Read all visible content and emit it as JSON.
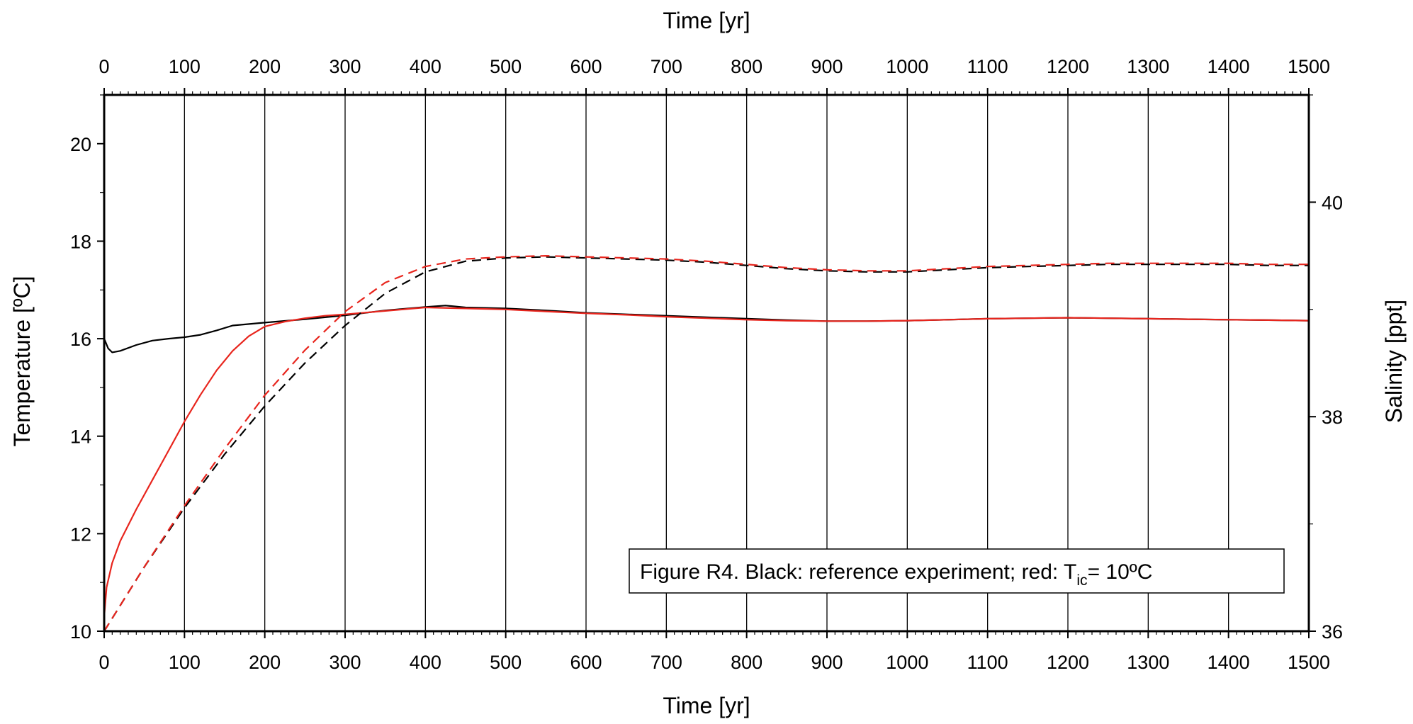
{
  "chart_data": {
    "type": "line",
    "xlabel": "Time [yr]",
    "xlabel_top": "Time [yr]",
    "ylabel": "Temperature [ºC]",
    "y2label": "Salinity [ppt]",
    "xlim": [
      0,
      1500
    ],
    "ylim": [
      10,
      21
    ],
    "y2lim": [
      36,
      41
    ],
    "x_ticks": [
      "0",
      "100",
      "200",
      "300",
      "400",
      "500",
      "600",
      "700",
      "800",
      "900",
      "1000",
      "1100",
      "1200",
      "1300",
      "1400",
      "1500"
    ],
    "y_ticks": [
      "10",
      "12",
      "14",
      "16",
      "18",
      "20"
    ],
    "y2_ticks": [
      "36",
      "38",
      "40"
    ],
    "grid": "vertical lines at every 100 yr",
    "caption": {
      "prefix": "Figure R4. Black: reference experiment; red: T",
      "subscript": "ic",
      "suffix": "= 10ºC"
    },
    "series": [
      {
        "axis": "left",
        "style": "solid",
        "color": "#000000",
        "x": [
          0,
          5,
          10,
          20,
          40,
          60,
          80,
          100,
          120,
          140,
          160,
          200,
          250,
          300,
          350,
          400,
          425,
          450,
          500,
          550,
          600,
          650,
          700,
          750,
          800,
          850,
          900,
          950,
          1000,
          1050,
          1100,
          1150,
          1200,
          1250,
          1300,
          1350,
          1400,
          1450,
          1500
        ],
        "y": [
          16.0,
          15.8,
          15.72,
          15.75,
          15.87,
          15.96,
          16.0,
          16.03,
          16.08,
          16.17,
          16.27,
          16.33,
          16.4,
          16.48,
          16.58,
          16.65,
          16.68,
          16.64,
          16.62,
          16.58,
          16.53,
          16.5,
          16.47,
          16.44,
          16.41,
          16.38,
          16.36,
          16.36,
          16.37,
          16.39,
          16.41,
          16.42,
          16.43,
          16.42,
          16.41,
          16.4,
          16.39,
          16.38,
          16.37
        ]
      },
      {
        "axis": "left",
        "style": "solid",
        "color": "#e8251d",
        "x": [
          0,
          3,
          10,
          20,
          40,
          60,
          80,
          100,
          120,
          140,
          160,
          180,
          200,
          225,
          250,
          275,
          300,
          350,
          400,
          450,
          500,
          550,
          600,
          650,
          700,
          750,
          800,
          850,
          900,
          950,
          1000,
          1050,
          1100,
          1150,
          1200,
          1250,
          1300,
          1350,
          1400,
          1450,
          1500
        ],
        "y": [
          10.3,
          10.9,
          11.4,
          11.85,
          12.5,
          13.1,
          13.7,
          14.3,
          14.85,
          15.35,
          15.75,
          16.05,
          16.25,
          16.35,
          16.42,
          16.47,
          16.5,
          16.57,
          16.64,
          16.62,
          16.6,
          16.56,
          16.52,
          16.49,
          16.45,
          16.42,
          16.39,
          16.37,
          16.36,
          16.36,
          16.37,
          16.39,
          16.41,
          16.42,
          16.43,
          16.42,
          16.41,
          16.4,
          16.39,
          16.38,
          16.37
        ]
      },
      {
        "axis": "right",
        "style": "dashed",
        "color": "#000000",
        "x": [
          0,
          50,
          100,
          150,
          200,
          250,
          300,
          350,
          400,
          450,
          500,
          550,
          600,
          650,
          700,
          750,
          800,
          850,
          900,
          950,
          1000,
          1050,
          1100,
          1150,
          1200,
          1250,
          1300,
          1350,
          1400,
          1450,
          1500
        ],
        "y": [
          36.0,
          36.6,
          37.15,
          37.65,
          38.1,
          38.5,
          38.85,
          39.15,
          39.35,
          39.45,
          39.48,
          39.49,
          39.48,
          39.47,
          39.46,
          39.44,
          39.41,
          39.38,
          39.36,
          39.35,
          39.35,
          39.37,
          39.39,
          39.4,
          39.41,
          39.42,
          39.42,
          39.42,
          39.42,
          39.41,
          39.41
        ]
      },
      {
        "axis": "right",
        "style": "dashed",
        "color": "#e8251d",
        "x": [
          0,
          50,
          100,
          150,
          200,
          250,
          300,
          350,
          400,
          450,
          500,
          550,
          600,
          650,
          700,
          750,
          800,
          850,
          900,
          950,
          1000,
          1050,
          1100,
          1150,
          1200,
          1250,
          1300,
          1350,
          1400,
          1450,
          1500
        ],
        "y": [
          36.0,
          36.6,
          37.17,
          37.7,
          38.2,
          38.62,
          38.98,
          39.25,
          39.4,
          39.47,
          39.49,
          39.5,
          39.49,
          39.48,
          39.47,
          39.45,
          39.42,
          39.39,
          39.37,
          39.36,
          39.36,
          39.38,
          39.4,
          39.41,
          39.42,
          39.43,
          39.43,
          39.43,
          39.43,
          39.42,
          39.42
        ]
      }
    ]
  }
}
